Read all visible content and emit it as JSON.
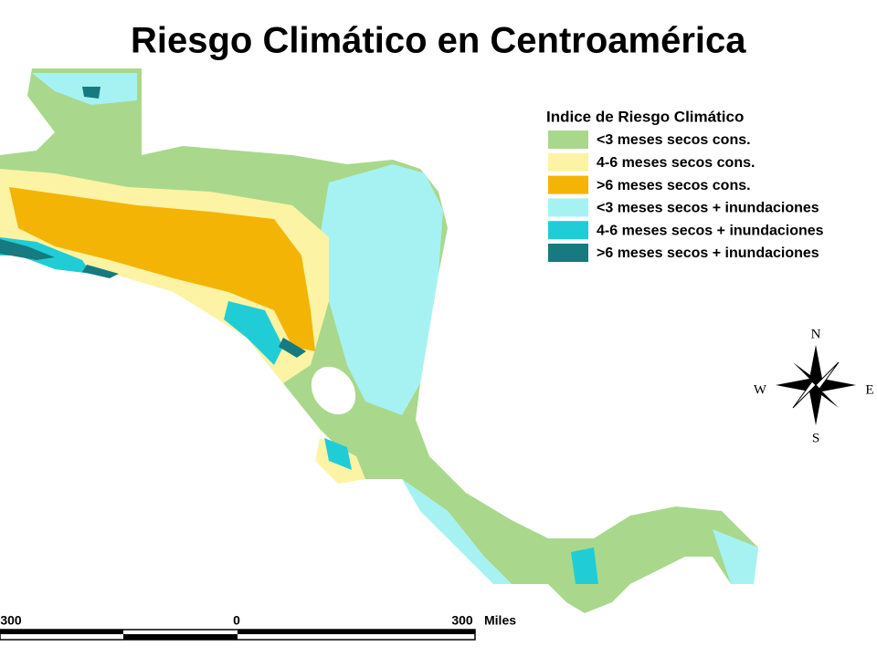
{
  "title": "Riesgo Climático en Centroamérica",
  "legend": {
    "title": "Indice de Riesgo Climático",
    "items": [
      {
        "label": "<3 meses secos cons.",
        "color": "#a9d88c"
      },
      {
        "label": "4-6 meses secos cons.",
        "color": "#fdf3a4"
      },
      {
        "label": ">6 meses secos cons.",
        "color": "#f3b406"
      },
      {
        "label": "<3 meses secos + inundaciones",
        "color": "#a6f2f2"
      },
      {
        "label": "4-6 meses secos + inundaciones",
        "color": "#20cdd6"
      },
      {
        "label": ">6 meses secos + inundaciones",
        "color": "#167a80"
      }
    ]
  },
  "compass": {
    "north": "N",
    "south": "S",
    "west": "W",
    "east": "E"
  },
  "scale_bar": {
    "labels": [
      "300",
      "0",
      "300"
    ],
    "unit": "Miles"
  }
}
